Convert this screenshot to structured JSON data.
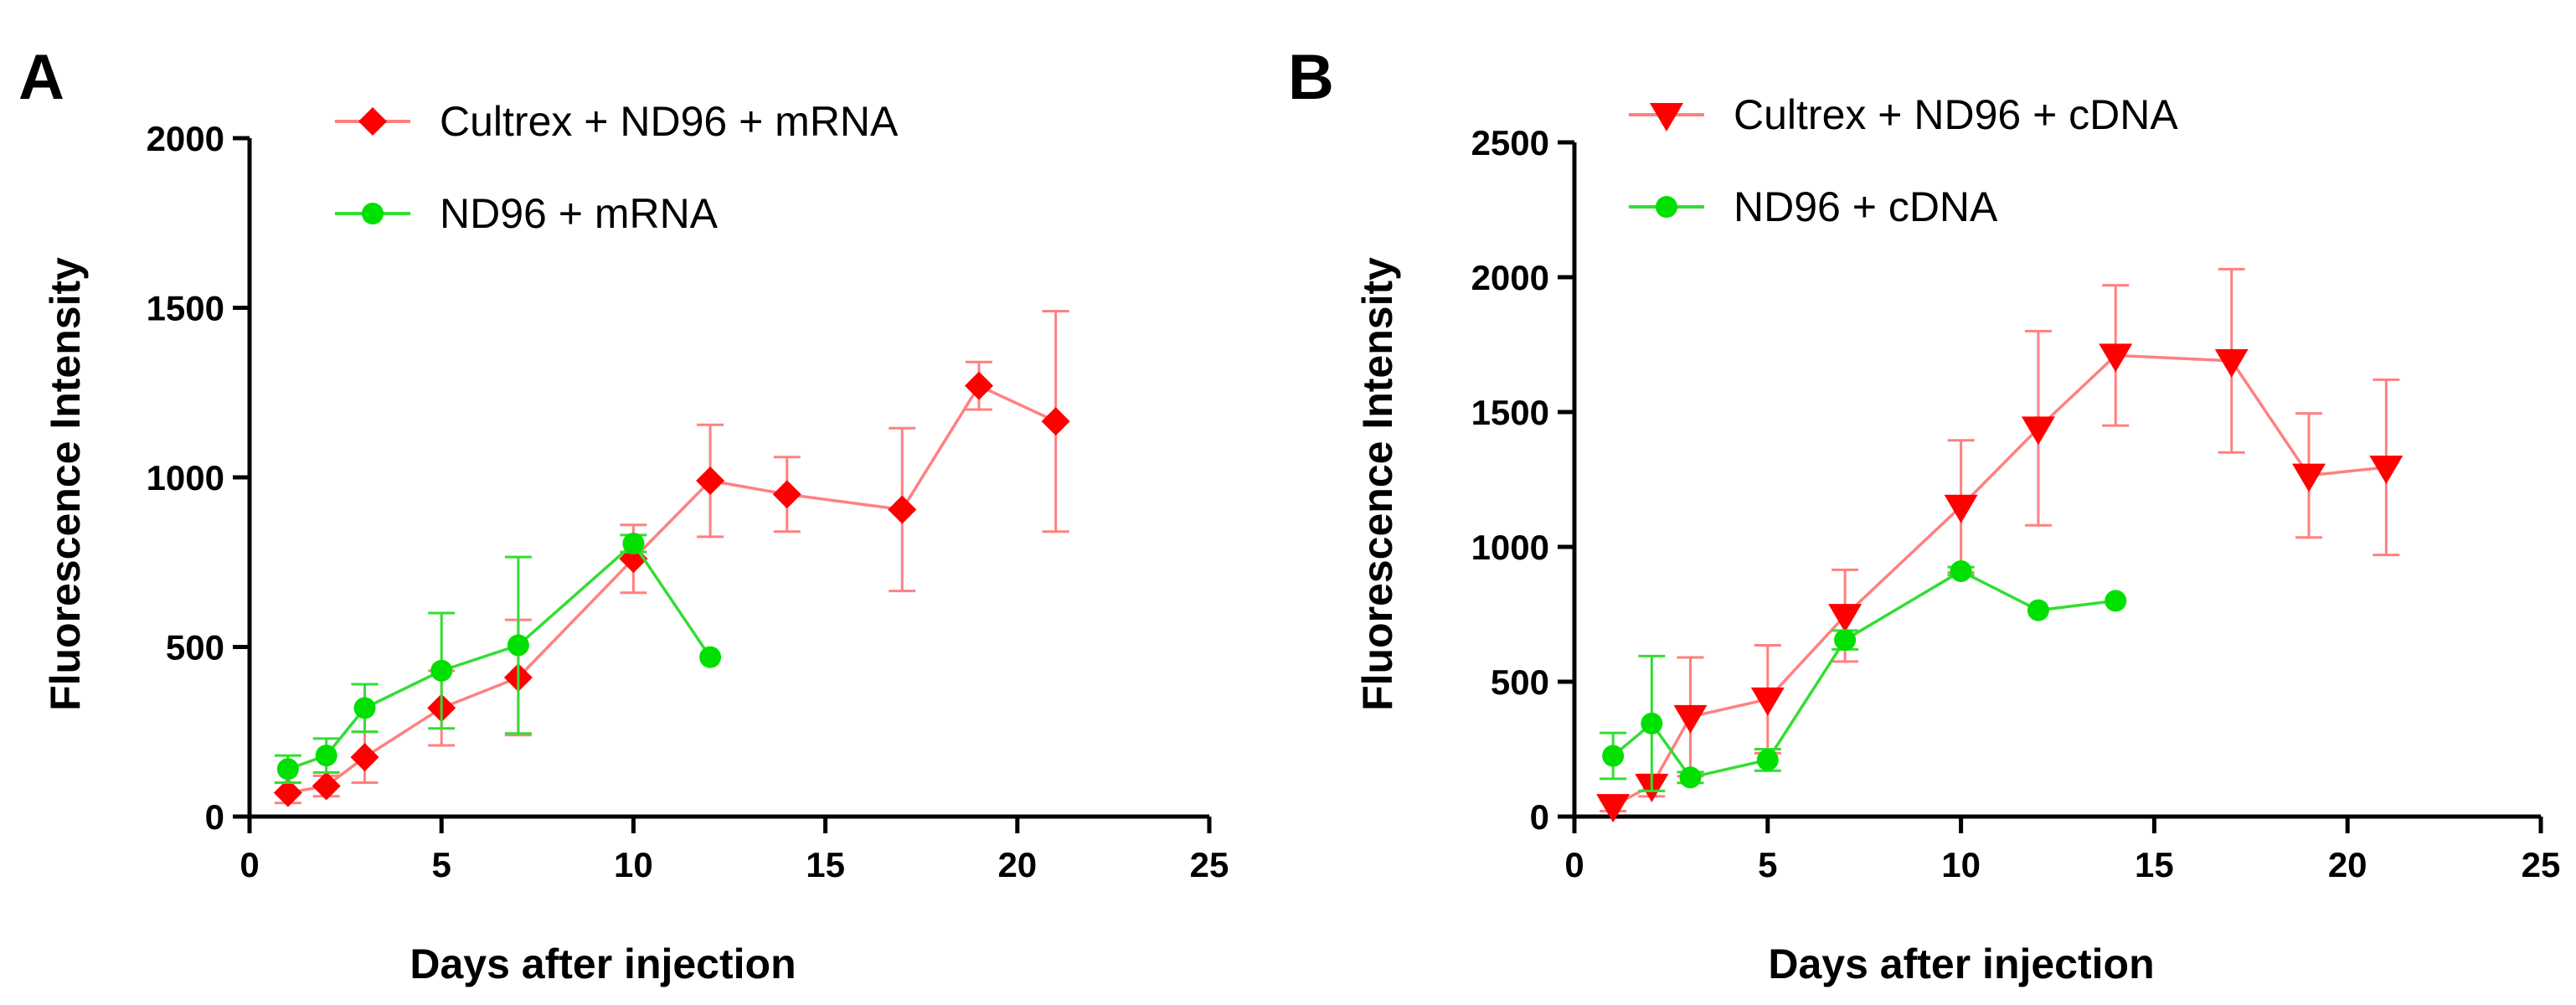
{
  "chart_data": [
    {
      "type": "line",
      "panel_label": "A",
      "xlabel": "Days after injection",
      "ylabel": "Fluorescence Intensity",
      "xlim": [
        0,
        25
      ],
      "ylim": [
        0,
        2000
      ],
      "xticks": [
        0,
        5,
        10,
        15,
        20,
        25
      ],
      "yticks": [
        0,
        500,
        1000,
        1500,
        2000
      ],
      "grid": false,
      "legend_position": "top",
      "series": [
        {
          "name": "Cultrex + ND96 + mRNA",
          "color": "#ff0000",
          "line_color": "#ff8080",
          "marker": "diamond",
          "x": [
            1,
            2,
            3,
            5,
            7,
            10,
            12,
            14,
            17,
            19,
            21
          ],
          "y": [
            70,
            90,
            175,
            320,
            410,
            760,
            990,
            950,
            905,
            1270,
            1165
          ],
          "err": [
            30,
            30,
            75,
            110,
            170,
            100,
            165,
            110,
            240,
            70,
            325
          ]
        },
        {
          "name": "ND96 + mRNA",
          "color": "#00e000",
          "line_color": "#33dd33",
          "marker": "circle",
          "x": [
            1,
            2,
            3,
            5,
            7,
            10,
            12
          ],
          "y": [
            140,
            180,
            320,
            430,
            505,
            805,
            470
          ],
          "err": [
            40,
            50,
            70,
            170,
            260,
            25,
            0
          ]
        }
      ]
    },
    {
      "type": "line",
      "panel_label": "B",
      "xlabel": "Days after injection",
      "ylabel": "Fluorescence  Intensity",
      "xlim": [
        0,
        25
      ],
      "ylim": [
        0,
        2500
      ],
      "xticks": [
        0,
        5,
        10,
        15,
        20,
        25
      ],
      "yticks": [
        0,
        500,
        1000,
        1500,
        2000,
        2500
      ],
      "grid": false,
      "legend_position": "top",
      "series": [
        {
          "name": "Cultrex + ND96 + cDNA",
          "color": "#ff0000",
          "line_color": "#ff8080",
          "marker": "triangle-down",
          "x": [
            1,
            2,
            3,
            5,
            7,
            10,
            12,
            14,
            17,
            19,
            21
          ],
          "y": [
            40,
            115,
            370,
            435,
            745,
            1150,
            1440,
            1710,
            1690,
            1265,
            1295
          ],
          "err": [
            20,
            40,
            220,
            200,
            170,
            245,
            360,
            260,
            340,
            230,
            325
          ]
        },
        {
          "name": "ND96 + cDNA",
          "color": "#00e000",
          "line_color": "#33dd33",
          "marker": "circle",
          "x": [
            1,
            2,
            3,
            5,
            7,
            10,
            12,
            14
          ],
          "y": [
            225,
            345,
            145,
            210,
            655,
            910,
            765,
            800
          ],
          "err": [
            85,
            250,
            20,
            40,
            35,
            15,
            0,
            0
          ]
        }
      ]
    }
  ]
}
